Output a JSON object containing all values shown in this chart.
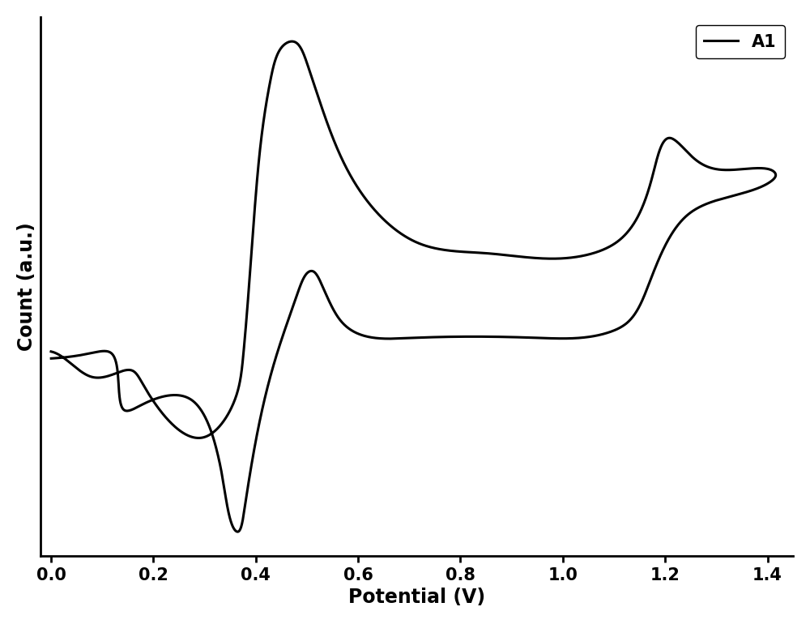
{
  "title": "",
  "xlabel": "Potential (V)",
  "ylabel": "Count (a.u.)",
  "legend_label": "A1",
  "xlim": [
    -0.02,
    1.45
  ],
  "ylim_auto": true,
  "xticks": [
    0.0,
    0.2,
    0.4,
    0.6,
    0.8,
    1.0,
    1.2,
    1.4
  ],
  "line_color": "#000000",
  "line_width": 2.2,
  "background_color": "#ffffff",
  "xlabel_fontsize": 17,
  "ylabel_fontsize": 17,
  "tick_fontsize": 15,
  "legend_fontsize": 15,
  "cv_points": [
    [
      0.0,
      0.5
    ],
    [
      0.02,
      0.49
    ],
    [
      0.05,
      0.475
    ],
    [
      0.08,
      0.46
    ],
    [
      0.1,
      0.455
    ],
    [
      0.12,
      0.46
    ],
    [
      0.14,
      0.47
    ],
    [
      0.15,
      0.475
    ],
    [
      0.16,
      0.47
    ],
    [
      0.17,
      0.46
    ],
    [
      0.18,
      0.445
    ],
    [
      0.2,
      0.42
    ],
    [
      0.23,
      0.39
    ],
    [
      0.26,
      0.37
    ],
    [
      0.28,
      0.36
    ],
    [
      0.3,
      0.36
    ],
    [
      0.32,
      0.37
    ],
    [
      0.34,
      0.39
    ],
    [
      0.36,
      0.43
    ],
    [
      0.37,
      0.46
    ],
    [
      0.375,
      0.49
    ],
    [
      0.38,
      0.53
    ],
    [
      0.385,
      0.58
    ],
    [
      0.39,
      0.635
    ],
    [
      0.395,
      0.695
    ],
    [
      0.4,
      0.755
    ],
    [
      0.41,
      0.835
    ],
    [
      0.42,
      0.895
    ],
    [
      0.43,
      0.935
    ],
    [
      0.44,
      0.965
    ],
    [
      0.45,
      0.985
    ],
    [
      0.46,
      0.997
    ],
    [
      0.47,
      1.0
    ],
    [
      0.48,
      0.995
    ],
    [
      0.49,
      0.98
    ],
    [
      0.5,
      0.955
    ],
    [
      0.52,
      0.91
    ],
    [
      0.54,
      0.865
    ],
    [
      0.56,
      0.825
    ],
    [
      0.58,
      0.79
    ],
    [
      0.6,
      0.76
    ],
    [
      0.63,
      0.725
    ],
    [
      0.67,
      0.695
    ],
    [
      0.72,
      0.675
    ],
    [
      0.78,
      0.66
    ],
    [
      0.85,
      0.655
    ],
    [
      0.92,
      0.652
    ],
    [
      1.0,
      0.65
    ],
    [
      1.04,
      0.652
    ],
    [
      1.07,
      0.658
    ],
    [
      1.1,
      0.67
    ],
    [
      1.12,
      0.685
    ],
    [
      1.14,
      0.705
    ],
    [
      1.155,
      0.73
    ],
    [
      1.165,
      0.755
    ],
    [
      1.175,
      0.78
    ],
    [
      1.185,
      0.805
    ],
    [
      1.193,
      0.825
    ],
    [
      1.2,
      0.84
    ],
    [
      1.205,
      0.845
    ],
    [
      1.21,
      0.845
    ],
    [
      1.215,
      0.843
    ],
    [
      1.22,
      0.838
    ],
    [
      1.23,
      0.828
    ],
    [
      1.24,
      0.818
    ],
    [
      1.25,
      0.81
    ],
    [
      1.27,
      0.8
    ],
    [
      1.3,
      0.793
    ],
    [
      1.33,
      0.79
    ],
    [
      1.36,
      0.79
    ],
    [
      1.4,
      0.79
    ],
    [
      1.42,
      0.79
    ],
    [
      1.42,
      0.775
    ],
    [
      1.4,
      0.768
    ],
    [
      1.37,
      0.76
    ],
    [
      1.34,
      0.75
    ],
    [
      1.31,
      0.742
    ],
    [
      1.28,
      0.734
    ],
    [
      1.26,
      0.728
    ],
    [
      1.245,
      0.72
    ],
    [
      1.23,
      0.708
    ],
    [
      1.215,
      0.692
    ],
    [
      1.2,
      0.668
    ],
    [
      1.185,
      0.64
    ],
    [
      1.17,
      0.61
    ],
    [
      1.155,
      0.582
    ],
    [
      1.14,
      0.56
    ],
    [
      1.125,
      0.545
    ],
    [
      1.11,
      0.535
    ],
    [
      1.09,
      0.528
    ],
    [
      1.07,
      0.525
    ],
    [
      1.05,
      0.523
    ],
    [
      1.02,
      0.522
    ],
    [
      1.0,
      0.522
    ],
    [
      0.95,
      0.522
    ],
    [
      0.9,
      0.522
    ],
    [
      0.85,
      0.522
    ],
    [
      0.8,
      0.522
    ],
    [
      0.75,
      0.522
    ],
    [
      0.7,
      0.522
    ],
    [
      0.65,
      0.522
    ],
    [
      0.62,
      0.524
    ],
    [
      0.6,
      0.528
    ],
    [
      0.58,
      0.535
    ],
    [
      0.565,
      0.548
    ],
    [
      0.55,
      0.565
    ],
    [
      0.54,
      0.585
    ],
    [
      0.53,
      0.605
    ],
    [
      0.52,
      0.622
    ],
    [
      0.515,
      0.63
    ],
    [
      0.51,
      0.633
    ],
    [
      0.505,
      0.63
    ],
    [
      0.498,
      0.622
    ],
    [
      0.49,
      0.608
    ],
    [
      0.48,
      0.59
    ],
    [
      0.47,
      0.568
    ],
    [
      0.46,
      0.542
    ],
    [
      0.45,
      0.515
    ],
    [
      0.44,
      0.487
    ],
    [
      0.43,
      0.46
    ],
    [
      0.42,
      0.432
    ],
    [
      0.415,
      0.418
    ],
    [
      0.41,
      0.402
    ],
    [
      0.405,
      0.384
    ],
    [
      0.4,
      0.362
    ],
    [
      0.395,
      0.337
    ],
    [
      0.39,
      0.308
    ],
    [
      0.385,
      0.278
    ],
    [
      0.38,
      0.25
    ],
    [
      0.375,
      0.228
    ],
    [
      0.37,
      0.212
    ],
    [
      0.365,
      0.205
    ],
    [
      0.36,
      0.207
    ],
    [
      0.355,
      0.218
    ],
    [
      0.35,
      0.235
    ],
    [
      0.345,
      0.255
    ],
    [
      0.34,
      0.278
    ],
    [
      0.332,
      0.308
    ],
    [
      0.325,
      0.335
    ],
    [
      0.318,
      0.358
    ],
    [
      0.31,
      0.378
    ],
    [
      0.3,
      0.398
    ],
    [
      0.288,
      0.412
    ],
    [
      0.275,
      0.422
    ],
    [
      0.26,
      0.428
    ],
    [
      0.24,
      0.43
    ],
    [
      0.22,
      0.428
    ],
    [
      0.2,
      0.422
    ],
    [
      0.18,
      0.415
    ],
    [
      0.16,
      0.408
    ],
    [
      0.14,
      0.403
    ],
    [
      0.12,
      0.5
    ],
    [
      0.1,
      0.498
    ],
    [
      0.08,
      0.496
    ],
    [
      0.06,
      0.494
    ],
    [
      0.04,
      0.492
    ],
    [
      0.02,
      0.49
    ],
    [
      0.0,
      0.488
    ]
  ]
}
